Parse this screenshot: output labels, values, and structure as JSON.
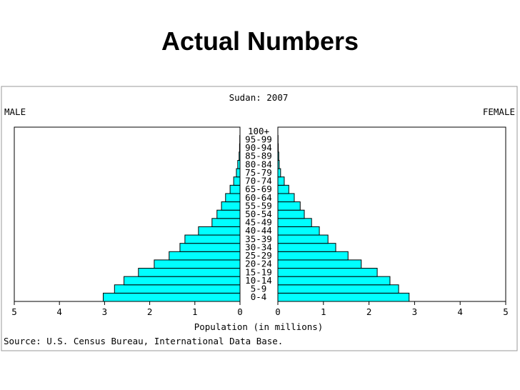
{
  "slide_title": "Actual Numbers",
  "chart_data": {
    "type": "pyramid",
    "title": "Sudan: 2007",
    "x_label": "Population (in millions)",
    "source": "Source: U.S. Census Bureau, International Data Base.",
    "categories": [
      "0-4",
      "5-9",
      "10-14",
      "15-19",
      "20-24",
      "25-29",
      "30-34",
      "35-39",
      "40-44",
      "45-49",
      "50-54",
      "55-59",
      "60-64",
      "65-69",
      "70-74",
      "75-79",
      "80-84",
      "85-89",
      "90-94",
      "95-99",
      "100+"
    ],
    "series": [
      {
        "name": "MALE",
        "color": "#00ffff",
        "values": [
          3.03,
          2.78,
          2.57,
          2.25,
          1.9,
          1.57,
          1.33,
          1.22,
          0.92,
          0.62,
          0.51,
          0.41,
          0.32,
          0.22,
          0.14,
          0.08,
          0.05,
          0.02,
          0.01,
          0.005,
          0
        ]
      },
      {
        "name": "FEMALE",
        "color": "#00ffff",
        "values": [
          2.88,
          2.65,
          2.46,
          2.18,
          1.83,
          1.54,
          1.27,
          1.1,
          0.91,
          0.74,
          0.58,
          0.49,
          0.36,
          0.24,
          0.14,
          0.06,
          0.03,
          0.02,
          0.01,
          0.005,
          0
        ]
      }
    ],
    "xlim": [
      0,
      5
    ],
    "xticks": [
      0,
      1,
      2,
      3,
      4,
      5
    ]
  }
}
